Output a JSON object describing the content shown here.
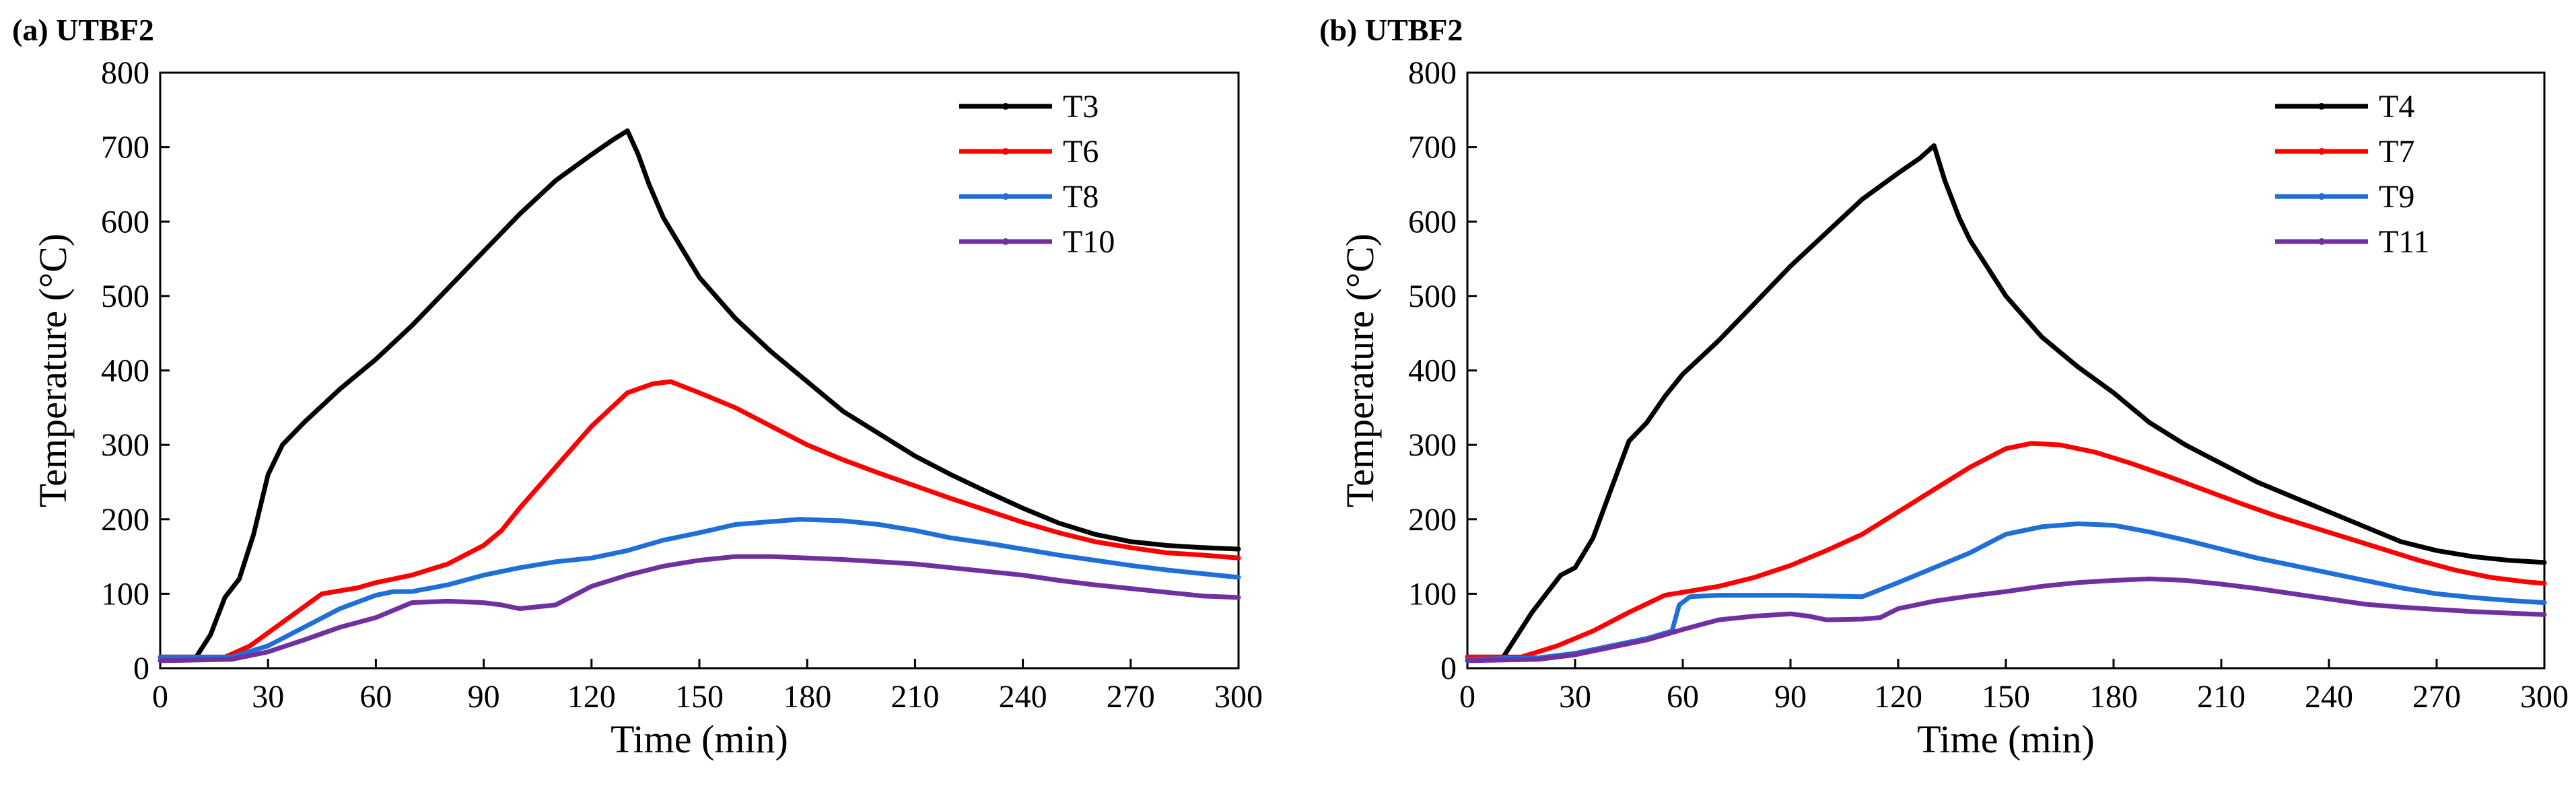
{
  "chart_data": [
    {
      "panel": "(a) UTBF2",
      "type": "line",
      "xlabel": "Time (min)",
      "ylabel": "Temperature (°C)",
      "xlim": [
        0,
        300
      ],
      "ylim": [
        0,
        800
      ],
      "xticks": [
        0,
        30,
        60,
        90,
        120,
        150,
        180,
        210,
        240,
        270,
        300
      ],
      "yticks": [
        0,
        100,
        200,
        300,
        400,
        500,
        600,
        700,
        800
      ],
      "legend_position": "top-right",
      "series": [
        {
          "name": "T3",
          "color": "#000000",
          "points": [
            [
              0,
              15
            ],
            [
              10,
              15
            ],
            [
              14,
              45
            ],
            [
              18,
              95
            ],
            [
              22,
              120
            ],
            [
              26,
              180
            ],
            [
              30,
              260
            ],
            [
              34,
              300
            ],
            [
              40,
              330
            ],
            [
              50,
              375
            ],
            [
              60,
              415
            ],
            [
              70,
              460
            ],
            [
              80,
              510
            ],
            [
              90,
              560
            ],
            [
              100,
              610
            ],
            [
              110,
              655
            ],
            [
              120,
              690
            ],
            [
              126,
              710
            ],
            [
              130,
              722
            ],
            [
              133,
              690
            ],
            [
              136,
              650
            ],
            [
              140,
              605
            ],
            [
              150,
              525
            ],
            [
              160,
              470
            ],
            [
              170,
              425
            ],
            [
              180,
              385
            ],
            [
              190,
              345
            ],
            [
              200,
              315
            ],
            [
              210,
              285
            ],
            [
              220,
              260
            ],
            [
              230,
              237
            ],
            [
              240,
              215
            ],
            [
              250,
              195
            ],
            [
              260,
              180
            ],
            [
              270,
              170
            ],
            [
              280,
              165
            ],
            [
              290,
              162
            ],
            [
              300,
              160
            ]
          ]
        },
        {
          "name": "T6",
          "color": "#ff0000",
          "points": [
            [
              0,
              15
            ],
            [
              18,
              15
            ],
            [
              25,
              30
            ],
            [
              35,
              65
            ],
            [
              45,
              100
            ],
            [
              55,
              108
            ],
            [
              60,
              115
            ],
            [
              70,
              125
            ],
            [
              80,
              140
            ],
            [
              90,
              165
            ],
            [
              95,
              185
            ],
            [
              100,
              215
            ],
            [
              110,
              270
            ],
            [
              120,
              325
            ],
            [
              130,
              370
            ],
            [
              137,
              382
            ],
            [
              142,
              385
            ],
            [
              150,
              370
            ],
            [
              160,
              350
            ],
            [
              170,
              325
            ],
            [
              180,
              300
            ],
            [
              190,
              280
            ],
            [
              200,
              262
            ],
            [
              210,
              245
            ],
            [
              220,
              228
            ],
            [
              230,
              212
            ],
            [
              240,
              196
            ],
            [
              250,
              182
            ],
            [
              260,
              170
            ],
            [
              270,
              162
            ],
            [
              280,
              155
            ],
            [
              290,
              152
            ],
            [
              300,
              148
            ]
          ]
        },
        {
          "name": "T8",
          "color": "#1f6fd6",
          "points": [
            [
              0,
              15
            ],
            [
              20,
              15
            ],
            [
              30,
              30
            ],
            [
              40,
              55
            ],
            [
              50,
              80
            ],
            [
              60,
              98
            ],
            [
              65,
              103
            ],
            [
              70,
              103
            ],
            [
              80,
              112
            ],
            [
              90,
              125
            ],
            [
              100,
              135
            ],
            [
              110,
              143
            ],
            [
              120,
              148
            ],
            [
              130,
              158
            ],
            [
              140,
              172
            ],
            [
              150,
              182
            ],
            [
              160,
              193
            ],
            [
              170,
              197
            ],
            [
              178,
              200
            ],
            [
              190,
              198
            ],
            [
              200,
              193
            ],
            [
              210,
              185
            ],
            [
              220,
              175
            ],
            [
              230,
              168
            ],
            [
              240,
              160
            ],
            [
              250,
              152
            ],
            [
              260,
              145
            ],
            [
              270,
              138
            ],
            [
              280,
              132
            ],
            [
              290,
              127
            ],
            [
              300,
              122
            ]
          ]
        },
        {
          "name": "T10",
          "color": "#7030a0",
          "points": [
            [
              0,
              10
            ],
            [
              20,
              12
            ],
            [
              30,
              22
            ],
            [
              40,
              38
            ],
            [
              50,
              55
            ],
            [
              60,
              68
            ],
            [
              70,
              88
            ],
            [
              80,
              90
            ],
            [
              90,
              88
            ],
            [
              95,
              85
            ],
            [
              100,
              80
            ],
            [
              110,
              85
            ],
            [
              120,
              110
            ],
            [
              130,
              125
            ],
            [
              140,
              137
            ],
            [
              150,
              145
            ],
            [
              160,
              150
            ],
            [
              170,
              150
            ],
            [
              180,
              148
            ],
            [
              190,
              146
            ],
            [
              200,
              143
            ],
            [
              210,
              140
            ],
            [
              220,
              135
            ],
            [
              230,
              130
            ],
            [
              240,
              125
            ],
            [
              250,
              118
            ],
            [
              260,
              112
            ],
            [
              270,
              107
            ],
            [
              280,
              102
            ],
            [
              290,
              97
            ],
            [
              300,
              95
            ]
          ]
        }
      ]
    },
    {
      "panel": "(b) UTBF2",
      "type": "line",
      "xlabel": "Time (min)",
      "ylabel": "Temperature (°C)",
      "xlim": [
        0,
        300
      ],
      "ylim": [
        0,
        800
      ],
      "xticks": [
        0,
        30,
        60,
        90,
        120,
        150,
        180,
        210,
        240,
        270,
        300
      ],
      "yticks": [
        0,
        100,
        200,
        300,
        400,
        500,
        600,
        700,
        800
      ],
      "legend_position": "top-right",
      "series": [
        {
          "name": "T4",
          "color": "#000000",
          "points": [
            [
              0,
              15
            ],
            [
              10,
              15
            ],
            [
              14,
              45
            ],
            [
              18,
              75
            ],
            [
              22,
              100
            ],
            [
              26,
              125
            ],
            [
              30,
              135
            ],
            [
              35,
              175
            ],
            [
              40,
              240
            ],
            [
              45,
              305
            ],
            [
              50,
              330
            ],
            [
              55,
              365
            ],
            [
              60,
              395
            ],
            [
              70,
              440
            ],
            [
              80,
              490
            ],
            [
              90,
              540
            ],
            [
              100,
              585
            ],
            [
              110,
              630
            ],
            [
              120,
              665
            ],
            [
              126,
              685
            ],
            [
              130,
              702
            ],
            [
              133,
              655
            ],
            [
              137,
              605
            ],
            [
              140,
              575
            ],
            [
              150,
              500
            ],
            [
              160,
              445
            ],
            [
              170,
              405
            ],
            [
              180,
              370
            ],
            [
              190,
              330
            ],
            [
              200,
              300
            ],
            [
              210,
              275
            ],
            [
              220,
              250
            ],
            [
              230,
              230
            ],
            [
              240,
              210
            ],
            [
              250,
              190
            ],
            [
              260,
              170
            ],
            [
              270,
              158
            ],
            [
              280,
              150
            ],
            [
              290,
              145
            ],
            [
              300,
              142
            ]
          ]
        },
        {
          "name": "T7",
          "color": "#ff0000",
          "points": [
            [
              0,
              15
            ],
            [
              15,
              15
            ],
            [
              25,
              30
            ],
            [
              35,
              50
            ],
            [
              45,
              75
            ],
            [
              55,
              98
            ],
            [
              60,
              102
            ],
            [
              70,
              110
            ],
            [
              80,
              122
            ],
            [
              90,
              138
            ],
            [
              100,
              158
            ],
            [
              110,
              180
            ],
            [
              120,
              210
            ],
            [
              130,
              240
            ],
            [
              140,
              270
            ],
            [
              150,
              295
            ],
            [
              157,
              302
            ],
            [
              165,
              300
            ],
            [
              175,
              290
            ],
            [
              185,
              275
            ],
            [
              195,
              258
            ],
            [
              205,
              240
            ],
            [
              215,
              222
            ],
            [
              225,
              205
            ],
            [
              235,
              190
            ],
            [
              245,
              175
            ],
            [
              255,
              160
            ],
            [
              265,
              145
            ],
            [
              275,
              132
            ],
            [
              285,
              122
            ],
            [
              295,
              116
            ],
            [
              300,
              114
            ]
          ]
        },
        {
          "name": "T9",
          "color": "#1f6fd6",
          "points": [
            [
              0,
              12
            ],
            [
              20,
              14
            ],
            [
              30,
              20
            ],
            [
              40,
              30
            ],
            [
              50,
              40
            ],
            [
              57,
              50
            ],
            [
              59,
              85
            ],
            [
              62,
              96
            ],
            [
              70,
              98
            ],
            [
              80,
              98
            ],
            [
              90,
              98
            ],
            [
              100,
              97
            ],
            [
              110,
              96
            ],
            [
              120,
              115
            ],
            [
              130,
              135
            ],
            [
              140,
              155
            ],
            [
              150,
              180
            ],
            [
              160,
              190
            ],
            [
              170,
              194
            ],
            [
              180,
              192
            ],
            [
              190,
              183
            ],
            [
              200,
              172
            ],
            [
              210,
              160
            ],
            [
              220,
              148
            ],
            [
              230,
              138
            ],
            [
              240,
              128
            ],
            [
              250,
              118
            ],
            [
              260,
              108
            ],
            [
              270,
              100
            ],
            [
              280,
              95
            ],
            [
              290,
              91
            ],
            [
              300,
              88
            ]
          ]
        },
        {
          "name": "T11",
          "color": "#7030a0",
          "points": [
            [
              0,
              10
            ],
            [
              20,
              12
            ],
            [
              30,
              18
            ],
            [
              40,
              28
            ],
            [
              50,
              38
            ],
            [
              60,
              52
            ],
            [
              70,
              65
            ],
            [
              80,
              70
            ],
            [
              90,
              73
            ],
            [
              95,
              70
            ],
            [
              100,
              65
            ],
            [
              110,
              66
            ],
            [
              115,
              68
            ],
            [
              120,
              80
            ],
            [
              130,
              90
            ],
            [
              140,
              97
            ],
            [
              150,
              103
            ],
            [
              160,
              110
            ],
            [
              170,
              115
            ],
            [
              180,
              118
            ],
            [
              190,
              120
            ],
            [
              200,
              118
            ],
            [
              210,
              113
            ],
            [
              220,
              107
            ],
            [
              230,
              100
            ],
            [
              240,
              93
            ],
            [
              250,
              86
            ],
            [
              260,
              82
            ],
            [
              270,
              79
            ],
            [
              280,
              76
            ],
            [
              290,
              74
            ],
            [
              300,
              72
            ]
          ]
        }
      ]
    }
  ]
}
